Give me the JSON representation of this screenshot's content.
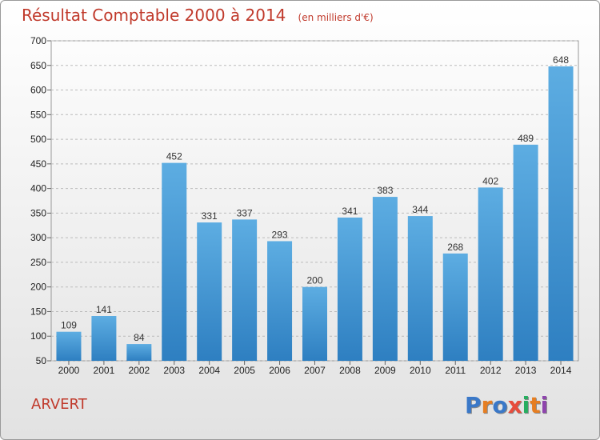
{
  "title": "Résultat Comptable 2000 à 2014",
  "subtitle": "(en milliers d'€)",
  "place_name": "ARVERT",
  "logo_text": "Proxiti",
  "logo_colors": [
    "#3a78c8",
    "#e67e22",
    "#3a78c8",
    "#e74c3c",
    "#27ae60",
    "#e67e22",
    "#8e44ad"
  ],
  "colors": {
    "bar_light": "#5dade2",
    "bar_dark": "#2e7fc1",
    "title": "#c0392b"
  },
  "chart_data": {
    "type": "bar",
    "categories": [
      "2000",
      "2001",
      "2002",
      "2003",
      "2004",
      "2005",
      "2006",
      "2007",
      "2008",
      "2009",
      "2010",
      "2011",
      "2012",
      "2013",
      "2014"
    ],
    "values": [
      109,
      141,
      84,
      452,
      331,
      337,
      293,
      200,
      341,
      383,
      344,
      268,
      402,
      489,
      648
    ],
    "ylim": [
      50,
      700
    ],
    "yticks": [
      50,
      100,
      150,
      200,
      250,
      300,
      350,
      400,
      450,
      500,
      550,
      600,
      650,
      700
    ],
    "grid": "horizontal dashed"
  }
}
